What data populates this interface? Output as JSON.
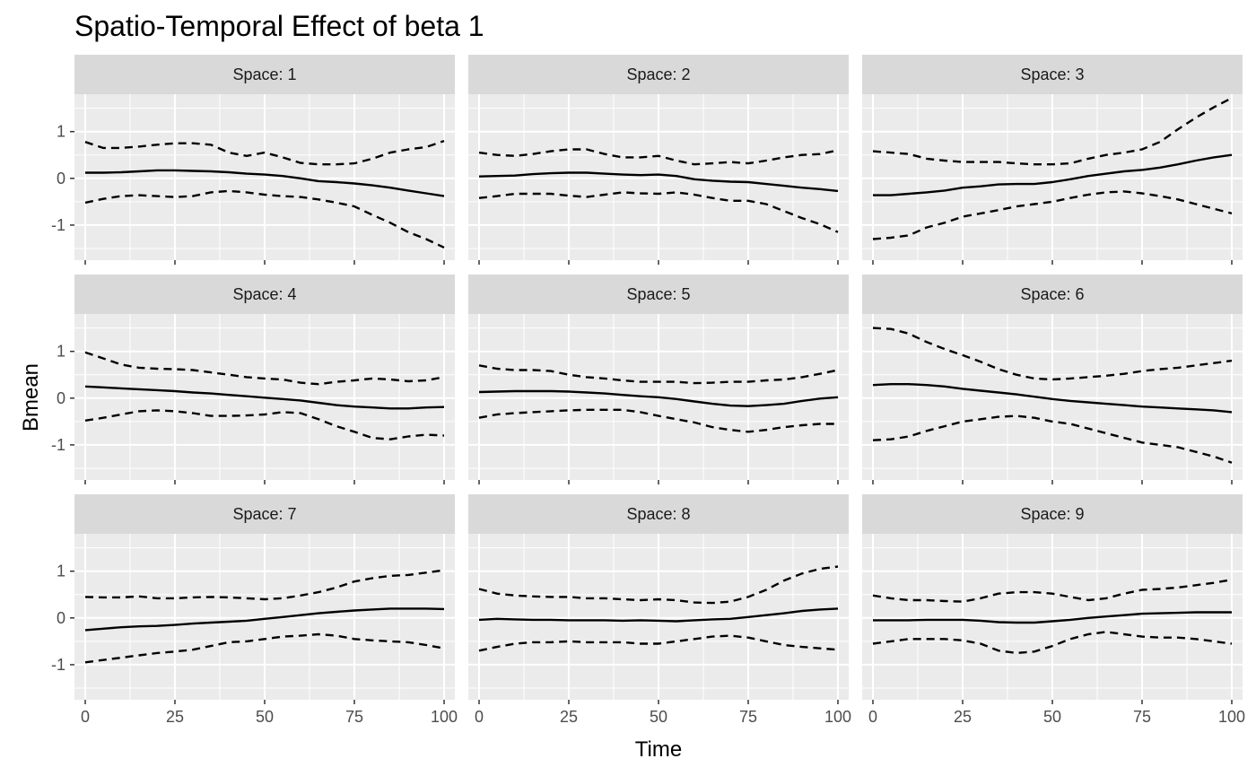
{
  "chart_data": {
    "type": "line",
    "title": "Spatio-Temporal Effect of beta 1",
    "xlabel": "Time",
    "ylabel": "Bmean",
    "xlim": [
      -3,
      103
    ],
    "ylim": [
      -1.75,
      1.8
    ],
    "x_ticks": [
      0,
      25,
      50,
      75,
      100
    ],
    "y_ticks": [
      -1,
      0,
      1
    ],
    "x_tick_labels": [
      "0",
      "25",
      "50",
      "75",
      "100"
    ],
    "y_tick_labels": [
      "-1",
      "0",
      "1"
    ],
    "grid": true,
    "panel_background": "#ebebeb",
    "strip_background": "#d9d9d9",
    "line_color": "#000000",
    "series_styles": {
      "mean": "solid",
      "upper": "dashed",
      "lower": "dashed"
    },
    "x": [
      0,
      5,
      10,
      15,
      20,
      25,
      30,
      35,
      40,
      45,
      50,
      55,
      60,
      65,
      70,
      75,
      80,
      85,
      90,
      95,
      100
    ],
    "facets": [
      {
        "label": "Space: 1",
        "mean": [
          0.12,
          0.12,
          0.13,
          0.15,
          0.17,
          0.17,
          0.16,
          0.15,
          0.13,
          0.1,
          0.08,
          0.05,
          0.0,
          -0.06,
          -0.08,
          -0.11,
          -0.15,
          -0.2,
          -0.26,
          -0.32,
          -0.38
        ],
        "upper": [
          0.78,
          0.65,
          0.65,
          0.68,
          0.72,
          0.75,
          0.75,
          0.72,
          0.55,
          0.48,
          0.55,
          0.45,
          0.33,
          0.3,
          0.3,
          0.32,
          0.42,
          0.55,
          0.62,
          0.67,
          0.8
        ],
        "lower": [
          -0.52,
          -0.44,
          -0.38,
          -0.36,
          -0.38,
          -0.4,
          -0.38,
          -0.3,
          -0.27,
          -0.3,
          -0.35,
          -0.38,
          -0.4,
          -0.45,
          -0.52,
          -0.6,
          -0.78,
          -0.95,
          -1.15,
          -1.3,
          -1.48
        ]
      },
      {
        "label": "Space: 2",
        "mean": [
          0.04,
          0.05,
          0.06,
          0.09,
          0.11,
          0.12,
          0.12,
          0.1,
          0.08,
          0.07,
          0.08,
          0.05,
          -0.02,
          -0.05,
          -0.07,
          -0.08,
          -0.12,
          -0.16,
          -0.2,
          -0.23,
          -0.27
        ],
        "upper": [
          0.55,
          0.5,
          0.48,
          0.52,
          0.58,
          0.62,
          0.62,
          0.52,
          0.45,
          0.45,
          0.48,
          0.38,
          0.3,
          0.32,
          0.35,
          0.32,
          0.38,
          0.45,
          0.5,
          0.52,
          0.6
        ],
        "lower": [
          -0.42,
          -0.38,
          -0.33,
          -0.33,
          -0.33,
          -0.37,
          -0.4,
          -0.35,
          -0.3,
          -0.32,
          -0.33,
          -0.3,
          -0.35,
          -0.42,
          -0.48,
          -0.48,
          -0.55,
          -0.7,
          -0.85,
          -0.98,
          -1.15
        ]
      },
      {
        "label": "Space: 3",
        "mean": [
          -0.36,
          -0.36,
          -0.33,
          -0.3,
          -0.26,
          -0.2,
          -0.17,
          -0.13,
          -0.12,
          -0.12,
          -0.08,
          -0.02,
          0.05,
          0.1,
          0.15,
          0.18,
          0.23,
          0.3,
          0.38,
          0.45,
          0.5
        ],
        "upper": [
          0.58,
          0.55,
          0.52,
          0.42,
          0.38,
          0.35,
          0.35,
          0.35,
          0.32,
          0.3,
          0.3,
          0.32,
          0.42,
          0.5,
          0.55,
          0.62,
          0.78,
          1.05,
          1.3,
          1.52,
          1.72
        ],
        "lower": [
          -1.3,
          -1.27,
          -1.22,
          -1.05,
          -0.95,
          -0.82,
          -0.75,
          -0.68,
          -0.6,
          -0.55,
          -0.5,
          -0.42,
          -0.35,
          -0.3,
          -0.28,
          -0.32,
          -0.38,
          -0.45,
          -0.55,
          -0.65,
          -0.75
        ]
      },
      {
        "label": "Space: 4",
        "mean": [
          0.25,
          0.23,
          0.21,
          0.19,
          0.17,
          0.15,
          0.12,
          0.1,
          0.07,
          0.04,
          0.01,
          -0.02,
          -0.05,
          -0.1,
          -0.15,
          -0.18,
          -0.2,
          -0.22,
          -0.22,
          -0.2,
          -0.19
        ],
        "upper": [
          0.98,
          0.85,
          0.72,
          0.65,
          0.63,
          0.62,
          0.6,
          0.55,
          0.5,
          0.45,
          0.42,
          0.4,
          0.33,
          0.3,
          0.35,
          0.38,
          0.42,
          0.4,
          0.36,
          0.38,
          0.45
        ],
        "lower": [
          -0.48,
          -0.42,
          -0.35,
          -0.28,
          -0.26,
          -0.28,
          -0.32,
          -0.38,
          -0.38,
          -0.37,
          -0.35,
          -0.3,
          -0.32,
          -0.45,
          -0.6,
          -0.72,
          -0.85,
          -0.88,
          -0.82,
          -0.78,
          -0.8
        ]
      },
      {
        "label": "Space: 5",
        "mean": [
          0.13,
          0.14,
          0.15,
          0.15,
          0.15,
          0.14,
          0.12,
          0.1,
          0.07,
          0.04,
          0.02,
          -0.02,
          -0.07,
          -0.12,
          -0.16,
          -0.17,
          -0.15,
          -0.12,
          -0.06,
          -0.01,
          0.02
        ],
        "upper": [
          0.7,
          0.63,
          0.6,
          0.6,
          0.58,
          0.5,
          0.45,
          0.42,
          0.38,
          0.35,
          0.35,
          0.35,
          0.32,
          0.33,
          0.35,
          0.35,
          0.38,
          0.4,
          0.45,
          0.52,
          0.6
        ],
        "lower": [
          -0.42,
          -0.35,
          -0.32,
          -0.3,
          -0.28,
          -0.26,
          -0.25,
          -0.25,
          -0.25,
          -0.3,
          -0.38,
          -0.45,
          -0.52,
          -0.62,
          -0.68,
          -0.72,
          -0.68,
          -0.62,
          -0.58,
          -0.55,
          -0.55
        ]
      },
      {
        "label": "Space: 6",
        "mean": [
          0.28,
          0.3,
          0.3,
          0.28,
          0.25,
          0.2,
          0.16,
          0.12,
          0.08,
          0.03,
          -0.02,
          -0.06,
          -0.09,
          -0.12,
          -0.15,
          -0.18,
          -0.2,
          -0.22,
          -0.24,
          -0.26,
          -0.3
        ],
        "upper": [
          1.5,
          1.48,
          1.38,
          1.2,
          1.05,
          0.92,
          0.78,
          0.62,
          0.5,
          0.42,
          0.4,
          0.42,
          0.45,
          0.48,
          0.52,
          0.58,
          0.62,
          0.65,
          0.7,
          0.75,
          0.8
        ],
        "lower": [
          -0.9,
          -0.88,
          -0.82,
          -0.7,
          -0.6,
          -0.5,
          -0.45,
          -0.4,
          -0.38,
          -0.42,
          -0.5,
          -0.55,
          -0.65,
          -0.75,
          -0.85,
          -0.95,
          -1.0,
          -1.05,
          -1.15,
          -1.25,
          -1.38
        ]
      },
      {
        "label": "Space: 7",
        "mean": [
          -0.26,
          -0.23,
          -0.2,
          -0.18,
          -0.17,
          -0.15,
          -0.12,
          -0.1,
          -0.08,
          -0.06,
          -0.02,
          0.02,
          0.06,
          0.1,
          0.13,
          0.16,
          0.18,
          0.2,
          0.2,
          0.2,
          0.19
        ],
        "upper": [
          0.45,
          0.44,
          0.44,
          0.46,
          0.42,
          0.42,
          0.44,
          0.45,
          0.44,
          0.42,
          0.4,
          0.42,
          0.48,
          0.55,
          0.65,
          0.78,
          0.85,
          0.9,
          0.92,
          0.97,
          1.02
        ],
        "lower": [
          -0.95,
          -0.9,
          -0.85,
          -0.8,
          -0.75,
          -0.72,
          -0.68,
          -0.6,
          -0.52,
          -0.5,
          -0.45,
          -0.4,
          -0.38,
          -0.35,
          -0.38,
          -0.45,
          -0.48,
          -0.5,
          -0.52,
          -0.58,
          -0.65
        ]
      },
      {
        "label": "Space: 8",
        "mean": [
          -0.04,
          -0.02,
          -0.03,
          -0.04,
          -0.04,
          -0.05,
          -0.05,
          -0.05,
          -0.06,
          -0.05,
          -0.06,
          -0.07,
          -0.05,
          -0.03,
          -0.02,
          0.02,
          0.06,
          0.1,
          0.15,
          0.18,
          0.2
        ],
        "upper": [
          0.62,
          0.52,
          0.48,
          0.46,
          0.45,
          0.45,
          0.42,
          0.42,
          0.4,
          0.38,
          0.4,
          0.38,
          0.33,
          0.32,
          0.35,
          0.45,
          0.6,
          0.8,
          0.95,
          1.05,
          1.1
        ],
        "lower": [
          -0.7,
          -0.62,
          -0.55,
          -0.52,
          -0.52,
          -0.5,
          -0.52,
          -0.52,
          -0.52,
          -0.55,
          -0.55,
          -0.5,
          -0.45,
          -0.4,
          -0.38,
          -0.42,
          -0.5,
          -0.58,
          -0.62,
          -0.65,
          -0.68
        ]
      },
      {
        "label": "Space: 9",
        "mean": [
          -0.05,
          -0.05,
          -0.05,
          -0.04,
          -0.04,
          -0.04,
          -0.06,
          -0.09,
          -0.1,
          -0.1,
          -0.07,
          -0.04,
          0.0,
          0.03,
          0.06,
          0.09,
          0.1,
          0.11,
          0.12,
          0.12,
          0.12
        ],
        "upper": [
          0.48,
          0.42,
          0.38,
          0.38,
          0.36,
          0.35,
          0.42,
          0.52,
          0.55,
          0.55,
          0.52,
          0.45,
          0.38,
          0.42,
          0.52,
          0.6,
          0.62,
          0.65,
          0.7,
          0.75,
          0.82
        ],
        "lower": [
          -0.55,
          -0.5,
          -0.45,
          -0.45,
          -0.45,
          -0.48,
          -0.55,
          -0.7,
          -0.75,
          -0.72,
          -0.6,
          -0.45,
          -0.35,
          -0.3,
          -0.35,
          -0.4,
          -0.42,
          -0.42,
          -0.45,
          -0.5,
          -0.55
        ]
      }
    ]
  }
}
